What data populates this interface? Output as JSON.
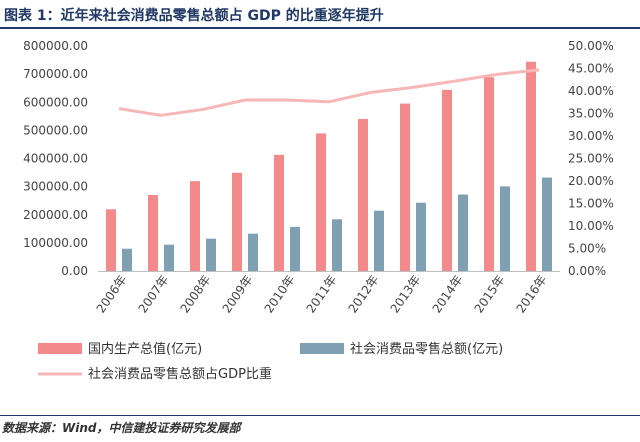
{
  "header": {
    "title": "图表 1：近年来社会消费品零售总额占 GDP 的比重逐年提升"
  },
  "footer": {
    "source": "数据来源：Wind，中信建投证券研究发展部"
  },
  "colors": {
    "gdp": "#f28a8c",
    "retail": "#7f9fb3",
    "ratio": "#f7b7b6",
    "title": "#1f3864"
  },
  "chart_data": {
    "type": "bar",
    "categories": [
      "2006年",
      "2007年",
      "2008年",
      "2009年",
      "2010年",
      "2011年",
      "2012年",
      "2013年",
      "2014年",
      "2015年",
      "2016年"
    ],
    "series": [
      {
        "name": "国内生产总值(亿元)",
        "type": "bar",
        "axis": "left",
        "values": [
          219439,
          270232,
          319516,
          349081,
          413030,
          489301,
          540367,
          595244,
          643974,
          689052,
          744127
        ]
      },
      {
        "name": "社会消费品零售总额(亿元)",
        "type": "bar",
        "axis": "left",
        "values": [
          79145,
          93572,
          114830,
          132678,
          156998,
          183919,
          214433,
          242843,
          271896,
          300931,
          332316
        ]
      },
      {
        "name": "社会消费品零售总额占GDP比重",
        "type": "line",
        "axis": "right",
        "values": [
          36.1,
          34.6,
          35.9,
          38.0,
          38.0,
          37.6,
          39.7,
          40.8,
          42.2,
          43.7,
          44.7
        ]
      }
    ],
    "yticks_left": [
      "0.00",
      "100000.00",
      "200000.00",
      "300000.00",
      "400000.00",
      "500000.00",
      "600000.00",
      "700000.00",
      "800000.00"
    ],
    "yticks_right": [
      "0.00%",
      "5.00%",
      "10.00%",
      "15.00%",
      "20.00%",
      "25.00%",
      "30.00%",
      "35.00%",
      "40.00%",
      "45.00%",
      "50.00%"
    ],
    "ylim_left": [
      0,
      800000
    ],
    "ylim_right": [
      0,
      50
    ],
    "legend_position": "bottom",
    "grid": false
  }
}
